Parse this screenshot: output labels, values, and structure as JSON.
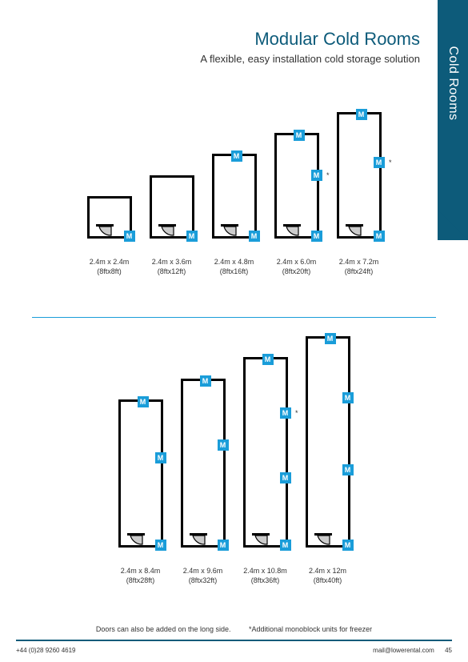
{
  "sideTab": {
    "label": "Cold Rooms",
    "bg": "#0d5b7a",
    "fg": "#ffffff"
  },
  "title": "Modular Cold Rooms",
  "subtitle": "A flexible, easy installation cold storage solution",
  "colors": {
    "accent": "#1a9dd9",
    "brand": "#0d5b7a",
    "line": "#000000"
  },
  "diagram": {
    "boxWidthPx": 56,
    "lengthPxPerMeter": 22,
    "badge": "M",
    "row1": [
      {
        "dim": "2.4m x 2.4m",
        "imp": "(8ftx8ft)",
        "len": 2.4,
        "mTop": 0,
        "mSide": 0,
        "mBottom": 1,
        "star": false
      },
      {
        "dim": "2.4m x 3.6m",
        "imp": "(8ftx12ft)",
        "len": 3.6,
        "mTop": 0,
        "mSide": 0,
        "mBottom": 1,
        "star": false
      },
      {
        "dim": "2.4m x 4.8m",
        "imp": "(8ftx16ft)",
        "len": 4.8,
        "mTop": 1,
        "mSide": 0,
        "mBottom": 1,
        "star": false
      },
      {
        "dim": "2.4m x 6.0m",
        "imp": "(8ftx20ft)",
        "len": 6.0,
        "mTop": 1,
        "mSide": 1,
        "mBottom": 1,
        "star": true
      },
      {
        "dim": "2.4m x 7.2m",
        "imp": "(8ftx24ft)",
        "len": 7.2,
        "mTop": 1,
        "mSide": 1,
        "mBottom": 1,
        "star": true
      }
    ],
    "row2": [
      {
        "dim": "2.4m x 8.4m",
        "imp": "(8ftx28ft)",
        "len": 8.4,
        "mTop": 1,
        "mSide": 1,
        "mBottom": 1,
        "star": false
      },
      {
        "dim": "2.4m x 9.6m",
        "imp": "(8ftx32ft)",
        "len": 9.6,
        "mTop": 1,
        "mSide": 1,
        "mBottom": 1,
        "star": false
      },
      {
        "dim": "2.4m x 10.8m",
        "imp": "(8ftx36ft)",
        "len": 10.8,
        "mTop": 1,
        "mSide": 2,
        "mBottom": 1,
        "star": true
      },
      {
        "dim": "2.4m x 12m",
        "imp": "(8ftx40ft)",
        "len": 12.0,
        "mTop": 1,
        "mSide": 2,
        "mBottom": 1,
        "star": false
      }
    ]
  },
  "note1": "Doors can also be added on the long side.",
  "note2": "*Additional monoblock units for freezer",
  "footer": {
    "phone": "+44 (0)28 9260 4619",
    "email": "mail@lowerental.com",
    "page": "45"
  }
}
